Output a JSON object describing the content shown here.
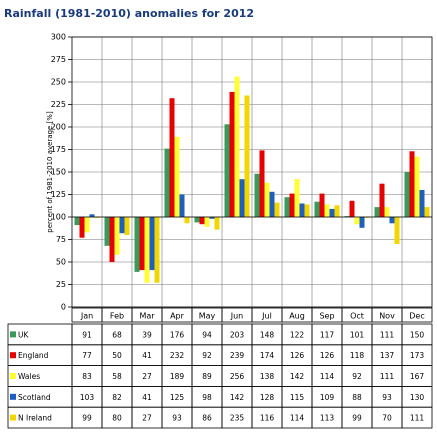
{
  "chart_data": {
    "type": "bar",
    "title": "Rainfall (1981-2010) anomalies for 2012",
    "y_label": "percent of 1981-2010 average [%]",
    "categories": [
      "Jan",
      "Feb",
      "Mar",
      "Apr",
      "May",
      "Jun",
      "Jul",
      "Aug",
      "Sep",
      "Oct",
      "Nov",
      "Dec"
    ],
    "series": [
      {
        "name": "UK",
        "color": "#3a9a5c",
        "values": [
          91,
          68,
          39,
          176,
          94,
          203,
          148,
          122,
          117,
          101,
          111,
          150
        ]
      },
      {
        "name": "England",
        "color": "#e60000",
        "values": [
          77,
          50,
          41,
          232,
          92,
          239,
          174,
          126,
          126,
          118,
          137,
          173
        ]
      },
      {
        "name": "Wales",
        "color": "#ffff33",
        "values": [
          83,
          58,
          27,
          189,
          89,
          256,
          138,
          142,
          114,
          92,
          111,
          167
        ]
      },
      {
        "name": "Scotland",
        "color": "#1f5fc0",
        "values": [
          103,
          82,
          41,
          125,
          98,
          142,
          128,
          115,
          109,
          88,
          93,
          130
        ]
      },
      {
        "name": "N Ireland",
        "color": "#f2d600",
        "values": [
          99,
          80,
          27,
          93,
          86,
          235,
          116,
          114,
          113,
          99,
          70,
          111
        ]
      }
    ],
    "baseline": 100,
    "ylim": [
      0,
      300
    ],
    "yticks": [
      0,
      25,
      50,
      75,
      100,
      125,
      150,
      175,
      200,
      225,
      250,
      275,
      300
    ],
    "grid": true
  }
}
